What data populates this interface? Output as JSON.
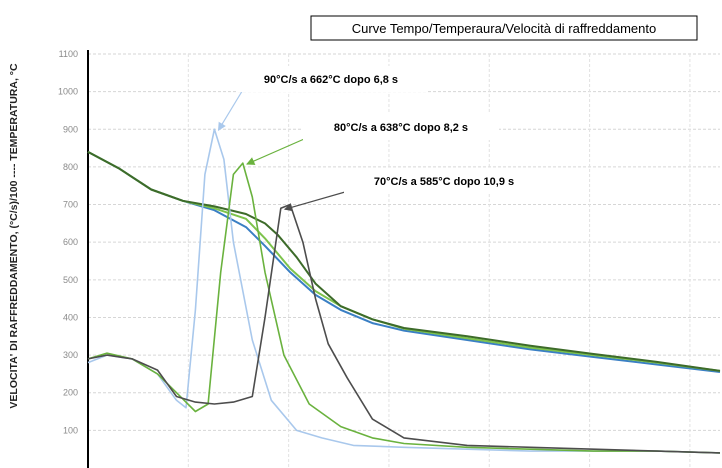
{
  "chart_data": {
    "type": "line",
    "title": "Curve Tempo/Temperaura/Velocità di raffreddamento",
    "xlabel": "",
    "ylabel": "VELOCITA' DI RAFFREDDAMENTO, (°C/s)/100 ----  TEMPERATURA, °C",
    "ylim": [
      0,
      1100
    ],
    "xlim": [
      0,
      100
    ],
    "y_ticks": [
      "100",
      "200",
      "300",
      "400",
      "500",
      "600",
      "700",
      "800",
      "900",
      "1000",
      "1100"
    ],
    "grid": true,
    "legend": "none",
    "series": [
      {
        "color": "#3a7fc4",
        "kind": "temperature",
        "x": [
          0,
          5,
          10,
          15,
          20,
          25,
          28,
          32,
          36,
          40,
          45,
          50,
          60,
          70,
          80,
          90,
          100
        ],
        "y": [
          840,
          795,
          740,
          710,
          685,
          640,
          590,
          520,
          460,
          420,
          385,
          365,
          340,
          315,
          295,
          275,
          255
        ]
      },
      {
        "color": "#7dc34c",
        "kind": "temperature",
        "x": [
          0,
          5,
          10,
          15,
          20,
          25,
          28,
          32,
          36,
          40,
          45,
          50,
          60,
          70,
          80,
          90,
          100
        ],
        "y": [
          840,
          795,
          740,
          710,
          690,
          662,
          610,
          530,
          470,
          430,
          395,
          370,
          345,
          320,
          300,
          280,
          258
        ]
      },
      {
        "color": "#3d6b2a",
        "kind": "temperature",
        "x": [
          0,
          5,
          10,
          15,
          20,
          25,
          28,
          30,
          33,
          36,
          40,
          45,
          50,
          60,
          70,
          80,
          90,
          100
        ],
        "y": [
          840,
          795,
          740,
          710,
          695,
          675,
          650,
          620,
          560,
          490,
          430,
          395,
          372,
          350,
          325,
          303,
          282,
          258
        ]
      },
      {
        "color": "#a9c8ec",
        "kind": "rate",
        "x": [
          0,
          3,
          7,
          11,
          14,
          15.5,
          17,
          18.5,
          20,
          21.5,
          23,
          26,
          29,
          33,
          37,
          42,
          50,
          60,
          70,
          80,
          90,
          100
        ],
        "y": [
          280,
          300,
          290,
          250,
          180,
          160,
          420,
          780,
          900,
          820,
          600,
          340,
          180,
          100,
          80,
          60,
          55,
          50,
          45,
          45,
          45,
          40
        ]
      },
      {
        "color": "#6ab23e",
        "kind": "rate",
        "x": [
          0,
          3,
          7,
          11,
          14,
          17,
          19,
          21,
          23,
          24.5,
          26,
          28,
          31,
          35,
          40,
          45,
          50,
          60,
          70,
          80,
          90,
          100
        ],
        "y": [
          290,
          305,
          290,
          250,
          200,
          150,
          170,
          520,
          780,
          810,
          720,
          520,
          300,
          170,
          110,
          80,
          65,
          55,
          50,
          45,
          45,
          40
        ]
      },
      {
        "color": "#4d4d4d",
        "kind": "rate",
        "x": [
          0,
          3,
          7,
          11,
          14,
          17,
          20,
          23,
          26,
          28,
          30.5,
          32,
          34,
          36,
          38,
          41,
          45,
          50,
          60,
          70,
          80,
          90,
          100
        ],
        "y": [
          290,
          300,
          290,
          260,
          190,
          175,
          170,
          175,
          190,
          400,
          690,
          700,
          600,
          450,
          330,
          240,
          130,
          80,
          60,
          55,
          50,
          45,
          40
        ]
      }
    ],
    "annotations": [
      {
        "text": "90°C/s a 662°C dopo 6,8 s",
        "color": "#a9c8ec",
        "point": [
          20,
          900
        ]
      },
      {
        "text": "80°C/s a 638°C dopo 8,2 s",
        "color": "#6ab23e",
        "point": [
          24.5,
          810
        ]
      },
      {
        "text": "70°C/s a 585°C dopo 10,9 s",
        "color": "#4d4d4d",
        "point": [
          30.5,
          690
        ]
      }
    ]
  }
}
